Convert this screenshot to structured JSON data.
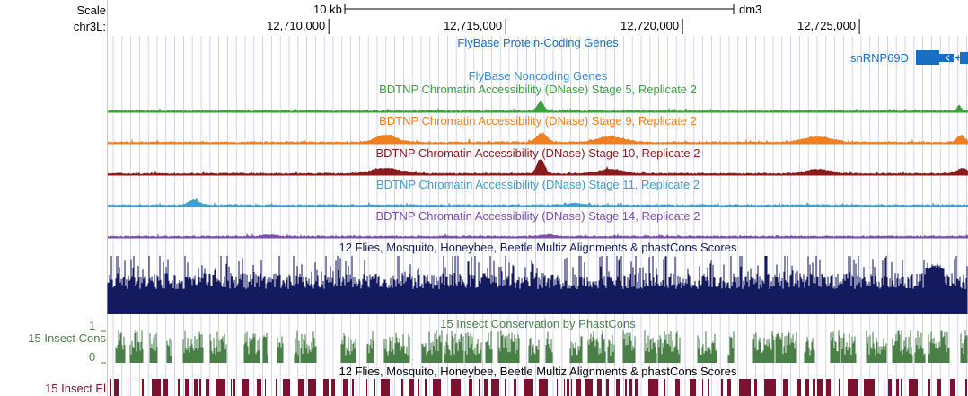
{
  "scale": {
    "label": "Scale",
    "bar_label": "10 kb",
    "assembly": "dm3"
  },
  "position": {
    "chrom_label": "chr3L:",
    "ticks": [
      "12,710,000",
      "12,715,000",
      "12,720,000",
      "12,725,000"
    ],
    "tick_values": [
      12710000,
      12715000,
      12720000,
      12725000
    ],
    "view_start": 12703750,
    "view_end": 12728070
  },
  "tracks": {
    "protein_genes": {
      "title": "FlyBase Protein-Coding Genes",
      "gene_label": "snRNP69D",
      "color": "#1a6fc4"
    },
    "noncoding_genes": {
      "title": "FlyBase Noncoding Genes",
      "color": "#3b8fd8"
    },
    "dnase": [
      {
        "title": "BDTNP Chromatin Accessibility (DNase) Stage 5, Replicate 2",
        "color": "#3aa33a"
      },
      {
        "title": "BDTNP Chromatin Accessibility (DNase) Stage 9, Replicate 2",
        "color": "#f07f20"
      },
      {
        "title": "BDTNP Chromatin Accessibility (DNase) Stage 10, Replicate 2",
        "color": "#8b1a1a"
      },
      {
        "title": "BDTNP Chromatin Accessibility (DNase) Stage 11, Replicate 2",
        "color": "#3ba0d0"
      },
      {
        "title": "BDTNP Chromatin Accessibility (DNase) Stage 14, Replicate 2",
        "color": "#7b4fa8"
      }
    ],
    "multiz": {
      "title": "12 Flies, Mosquito, Honeybee, Beetle Multiz Alignments & phastCons Scores",
      "color": "#141a5e"
    },
    "phastcons": {
      "title": "15 Insect Conservation by PhastCons",
      "left_label": "15 Insect Cons",
      "axis_max": "1",
      "axis_min": "0",
      "color": "#4a7f48"
    },
    "elements": {
      "title": "12 Flies, Mosquito, Honeybee, Beetle Multiz Alignments & phastCons Scores",
      "left_label": "15 Insect El",
      "color": "#7a1230"
    }
  },
  "colors": {
    "grid_line": "#c8c8f0",
    "left_border": "#f0b8b8"
  }
}
